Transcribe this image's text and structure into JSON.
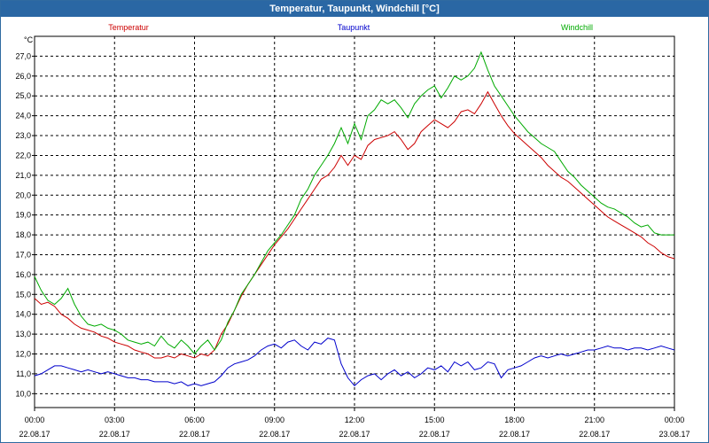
{
  "window": {
    "title": "Temperatur, Taupunkt, Windchill [°C]"
  },
  "chart_data": {
    "type": "line",
    "title": "Temperatur, Taupunkt, Windchill [°C]",
    "ylabel": "°C",
    "ylim": [
      9.3,
      28.0
    ],
    "yticks": [
      10,
      11,
      12,
      13,
      14,
      15,
      16,
      17,
      18,
      19,
      20,
      21,
      22,
      23,
      24,
      25,
      26,
      27
    ],
    "ytick_labels": [
      "10,0",
      "11,0",
      "12,0",
      "13,0",
      "14,0",
      "15,0",
      "16,0",
      "17,0",
      "18,0",
      "19,0",
      "20,0",
      "21,0",
      "22,0",
      "23,0",
      "24,0",
      "25,0",
      "26,0",
      "27,0"
    ],
    "xlim": [
      0,
      24
    ],
    "xticks": [
      {
        "time": "00:00",
        "date": "22.08.17"
      },
      {
        "time": "03:00",
        "date": "22.08.17"
      },
      {
        "time": "06:00",
        "date": "22.08.17"
      },
      {
        "time": "09:00",
        "date": "22.08.17"
      },
      {
        "time": "12:00",
        "date": "22.08.17"
      },
      {
        "time": "15:00",
        "date": "22.08.17"
      },
      {
        "time": "18:00",
        "date": "22.08.17"
      },
      {
        "time": "21:00",
        "date": "22.08.17"
      },
      {
        "time": "00:00",
        "date": "23.08.17"
      }
    ],
    "grid": true,
    "legend_position": "top",
    "series": [
      {
        "name": "Temperatur",
        "color": "#cc0000",
        "x": [
          0,
          0.25,
          0.5,
          0.75,
          1,
          1.25,
          1.5,
          1.75,
          2,
          2.25,
          2.5,
          2.75,
          3,
          3.25,
          3.5,
          3.75,
          4,
          4.25,
          4.5,
          4.75,
          5,
          5.25,
          5.5,
          5.75,
          6,
          6.25,
          6.5,
          6.75,
          7,
          7.25,
          7.5,
          7.75,
          8,
          8.25,
          8.5,
          8.75,
          9,
          9.25,
          9.5,
          9.75,
          10,
          10.25,
          10.5,
          10.75,
          11,
          11.25,
          11.5,
          11.75,
          12,
          12.25,
          12.5,
          12.75,
          13,
          13.25,
          13.5,
          13.75,
          14,
          14.25,
          14.5,
          14.75,
          15,
          15.25,
          15.5,
          15.75,
          16,
          16.25,
          16.5,
          16.75,
          17,
          17.25,
          17.5,
          17.75,
          18,
          18.25,
          18.5,
          18.75,
          19,
          19.25,
          19.5,
          19.75,
          20,
          20.25,
          20.5,
          20.75,
          21,
          21.25,
          21.5,
          21.75,
          22,
          22.25,
          22.5,
          22.75,
          23,
          23.25,
          23.5,
          23.75,
          24
        ],
        "values": [
          14.8,
          14.5,
          14.6,
          14.4,
          14.0,
          13.8,
          13.5,
          13.3,
          13.2,
          13.1,
          12.9,
          12.8,
          12.6,
          12.5,
          12.4,
          12.2,
          12.1,
          12.0,
          11.8,
          11.8,
          11.9,
          11.8,
          12.0,
          11.9,
          11.8,
          12.0,
          11.9,
          12.2,
          13.0,
          13.5,
          14.2,
          14.9,
          15.5,
          16.0,
          16.5,
          17.0,
          17.5,
          17.9,
          18.3,
          18.8,
          19.3,
          19.8,
          20.3,
          20.8,
          21.0,
          21.4,
          22.0,
          21.5,
          22.0,
          21.8,
          22.5,
          22.8,
          22.9,
          23.0,
          23.2,
          22.8,
          22.3,
          22.6,
          23.2,
          23.5,
          23.8,
          23.6,
          23.4,
          23.7,
          24.2,
          24.3,
          24.1,
          24.6,
          25.2,
          24.6,
          24.0,
          23.5,
          23.1,
          22.8,
          22.5,
          22.2,
          21.9,
          21.5,
          21.2,
          20.9,
          20.7,
          20.4,
          20.1,
          19.8,
          19.5,
          19.2,
          18.9,
          18.7,
          18.5,
          18.3,
          18.1,
          17.9,
          17.6,
          17.4,
          17.1,
          16.9,
          16.8
        ]
      },
      {
        "name": "Taupunkt",
        "color": "#0000cc",
        "x": [
          0,
          0.25,
          0.5,
          0.75,
          1,
          1.25,
          1.5,
          1.75,
          2,
          2.25,
          2.5,
          2.75,
          3,
          3.25,
          3.5,
          3.75,
          4,
          4.25,
          4.5,
          4.75,
          5,
          5.25,
          5.5,
          5.75,
          6,
          6.25,
          6.5,
          6.75,
          7,
          7.25,
          7.5,
          7.75,
          8,
          8.25,
          8.5,
          8.75,
          9,
          9.25,
          9.5,
          9.75,
          10,
          10.25,
          10.5,
          10.75,
          11,
          11.25,
          11.5,
          11.75,
          12,
          12.25,
          12.5,
          12.75,
          13,
          13.25,
          13.5,
          13.75,
          14,
          14.25,
          14.5,
          14.75,
          15,
          15.25,
          15.5,
          15.75,
          16,
          16.25,
          16.5,
          16.75,
          17,
          17.25,
          17.5,
          17.75,
          18,
          18.25,
          18.5,
          18.75,
          19,
          19.25,
          19.5,
          19.75,
          20,
          20.25,
          20.5,
          20.75,
          21,
          21.25,
          21.5,
          21.75,
          22,
          22.25,
          22.5,
          22.75,
          23,
          23.25,
          23.5,
          23.75,
          24
        ],
        "values": [
          10.9,
          11.0,
          11.2,
          11.4,
          11.4,
          11.3,
          11.2,
          11.1,
          11.2,
          11.1,
          11.0,
          11.1,
          11.0,
          10.9,
          10.8,
          10.8,
          10.7,
          10.7,
          10.6,
          10.6,
          10.6,
          10.5,
          10.6,
          10.4,
          10.5,
          10.4,
          10.5,
          10.6,
          10.9,
          11.3,
          11.5,
          11.6,
          11.7,
          11.9,
          12.2,
          12.4,
          12.5,
          12.3,
          12.6,
          12.7,
          12.4,
          12.2,
          12.6,
          12.5,
          12.8,
          12.7,
          11.5,
          10.8,
          10.4,
          10.7,
          10.9,
          11.0,
          10.7,
          11.0,
          11.2,
          10.9,
          11.1,
          10.8,
          11.0,
          11.3,
          11.2,
          11.4,
          11.1,
          11.6,
          11.4,
          11.6,
          11.2,
          11.3,
          11.6,
          11.5,
          10.8,
          11.2,
          11.3,
          11.4,
          11.6,
          11.8,
          11.9,
          11.8,
          11.9,
          12.0,
          11.9,
          12.0,
          12.1,
          12.2,
          12.2,
          12.3,
          12.4,
          12.3,
          12.3,
          12.2,
          12.3,
          12.3,
          12.2,
          12.3,
          12.4,
          12.3,
          12.2
        ]
      },
      {
        "name": "Windchill",
        "color": "#00aa00",
        "x": [
          0,
          0.25,
          0.5,
          0.75,
          1,
          1.25,
          1.5,
          1.75,
          2,
          2.25,
          2.5,
          2.75,
          3,
          3.25,
          3.5,
          3.75,
          4,
          4.25,
          4.5,
          4.75,
          5,
          5.25,
          5.5,
          5.75,
          6,
          6.25,
          6.5,
          6.75,
          7,
          7.25,
          7.5,
          7.75,
          8,
          8.25,
          8.5,
          8.75,
          9,
          9.25,
          9.5,
          9.75,
          10,
          10.25,
          10.5,
          10.75,
          11,
          11.25,
          11.5,
          11.75,
          12,
          12.25,
          12.5,
          12.75,
          13,
          13.25,
          13.5,
          13.75,
          14,
          14.25,
          14.5,
          14.75,
          15,
          15.25,
          15.5,
          15.75,
          16,
          16.25,
          16.5,
          16.75,
          17,
          17.25,
          17.5,
          17.75,
          18,
          18.25,
          18.5,
          18.75,
          19,
          19.25,
          19.5,
          19.75,
          20,
          20.25,
          20.5,
          20.75,
          21,
          21.25,
          21.5,
          21.75,
          22,
          22.25,
          22.5,
          22.75,
          23,
          23.25,
          23.5,
          23.75,
          24
        ],
        "values": [
          15.9,
          15.2,
          14.7,
          14.5,
          14.8,
          15.3,
          14.5,
          13.9,
          13.5,
          13.4,
          13.5,
          13.3,
          13.2,
          13.0,
          12.7,
          12.6,
          12.5,
          12.6,
          12.4,
          12.9,
          12.5,
          12.3,
          12.7,
          12.4,
          12.0,
          12.4,
          12.7,
          12.2,
          12.7,
          13.6,
          14.2,
          15.0,
          15.5,
          16.0,
          16.6,
          17.2,
          17.6,
          18.0,
          18.5,
          19.0,
          19.8,
          20.3,
          21.0,
          21.5,
          22.0,
          22.6,
          23.4,
          22.6,
          23.6,
          22.8,
          24.0,
          24.3,
          24.8,
          24.6,
          24.8,
          24.4,
          23.9,
          24.6,
          25.0,
          25.3,
          25.5,
          24.9,
          25.4,
          26.0,
          25.8,
          26.0,
          26.4,
          27.2,
          26.3,
          25.5,
          25.0,
          24.5,
          24.0,
          23.6,
          23.2,
          22.9,
          22.6,
          22.4,
          22.2,
          21.7,
          21.2,
          20.9,
          20.5,
          20.2,
          19.9,
          19.6,
          19.4,
          19.3,
          19.1,
          18.9,
          18.6,
          18.4,
          18.5,
          18.1,
          18.0,
          18.0,
          18.0
        ]
      }
    ]
  }
}
